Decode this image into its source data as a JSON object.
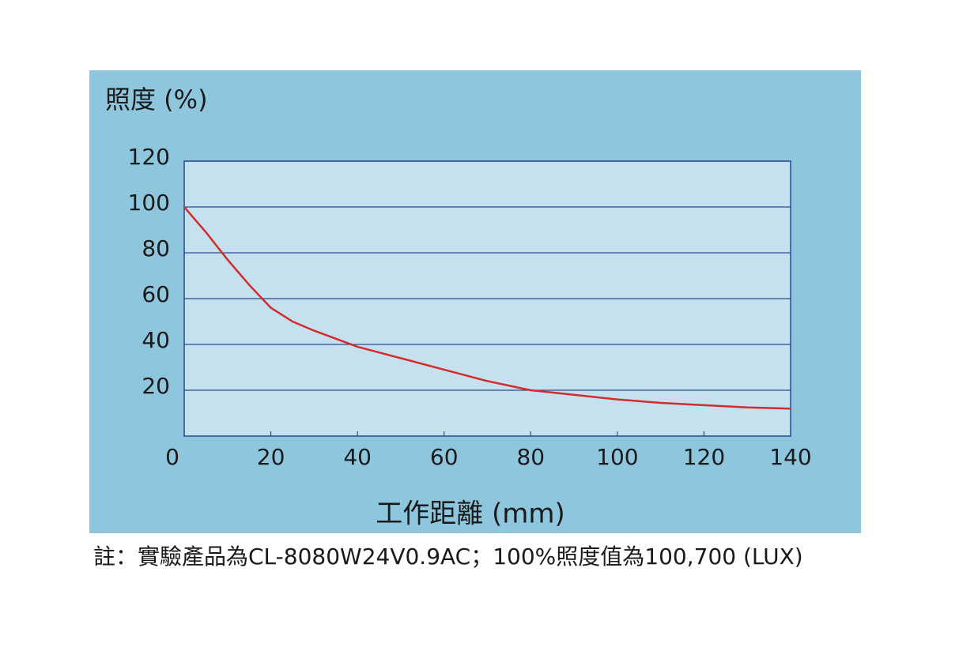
{
  "chart_data": {
    "type": "line",
    "y_label": "照度 (%)",
    "x_label": "工作距離 (mm)",
    "note": "註：實驗產品為CL-8080W24V0.9AC；100%照度值為100,700 (LUX)",
    "x": [
      0,
      5,
      10,
      15,
      20,
      25,
      30,
      40,
      50,
      60,
      70,
      80,
      90,
      100,
      110,
      120,
      130,
      140
    ],
    "series": [
      {
        "color": "#d42b2b",
        "values": [
          100,
          89,
          77,
          66,
          56,
          50,
          46,
          39,
          34,
          29,
          24,
          20,
          18,
          16,
          14.5,
          13.5,
          12.5,
          12
        ]
      }
    ],
    "xlim": [
      0,
      140
    ],
    "xticks": [
      0,
      20,
      40,
      60,
      80,
      100,
      120,
      140
    ],
    "ylim": [
      0,
      120
    ],
    "yticks": [
      20,
      40,
      60,
      80,
      100,
      120
    ],
    "grid": true
  }
}
